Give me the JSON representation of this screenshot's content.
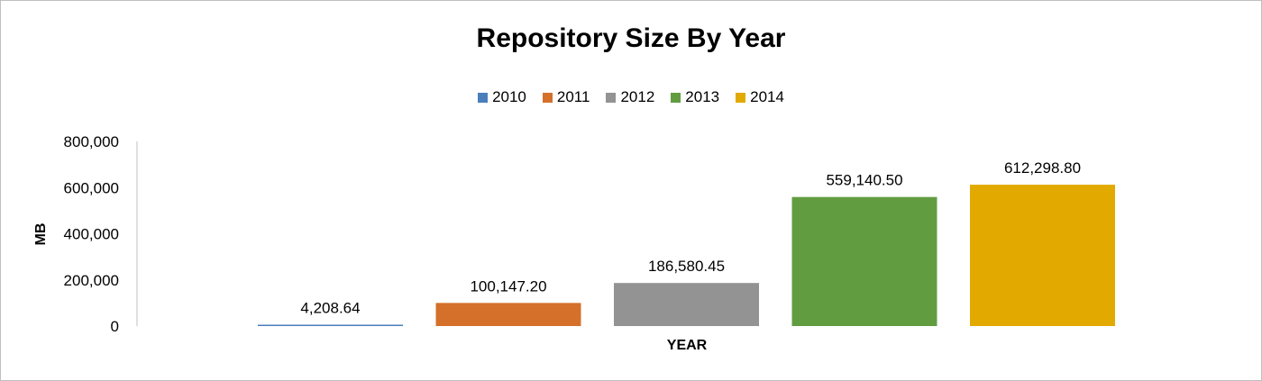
{
  "chart_data": {
    "type": "bar",
    "title": "Repository Size By Year",
    "xlabel": "YEAR",
    "ylabel": "MB",
    "ylim": [
      0,
      800000
    ],
    "yticks": [
      0,
      200000,
      400000,
      600000,
      800000
    ],
    "ytick_labels": [
      "0",
      "200,000",
      "400,000",
      "600,000",
      "800,000"
    ],
    "legend_position": "top",
    "grid": false,
    "series": [
      {
        "name": "2010",
        "value": 4208.64,
        "label": "4,208.64",
        "color": "#4a7ebb"
      },
      {
        "name": "2011",
        "value": 100147.2,
        "label": "100,147.20",
        "color": "#d4702a"
      },
      {
        "name": "2012",
        "value": 186580.45,
        "label": "186,580.45",
        "color": "#939393"
      },
      {
        "name": "2013",
        "value": 559140.5,
        "label": "559,140.50",
        "color": "#629c41"
      },
      {
        "name": "2014",
        "value": 612298.8,
        "label": "612,298.80",
        "color": "#e2aa00"
      }
    ]
  }
}
